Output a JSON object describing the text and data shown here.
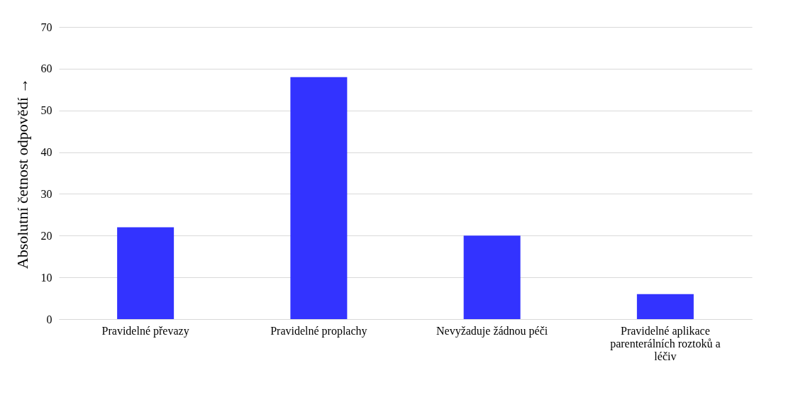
{
  "chart_data": {
    "type": "bar",
    "ylabel": "Absolutní četnost odpovědí   →",
    "categories": [
      "Pravidelné převazy",
      "Pravidelné proplachy",
      "Nevyžaduje žádnou péči",
      "Pravidelné aplikace parenterálních roztoků a léčiv"
    ],
    "values": [
      22,
      58,
      20,
      6
    ],
    "color": "#3333ff",
    "ylim": [
      0,
      70
    ],
    "yticks": [
      0,
      10,
      20,
      30,
      40,
      50,
      60,
      70
    ],
    "grid": "y"
  }
}
